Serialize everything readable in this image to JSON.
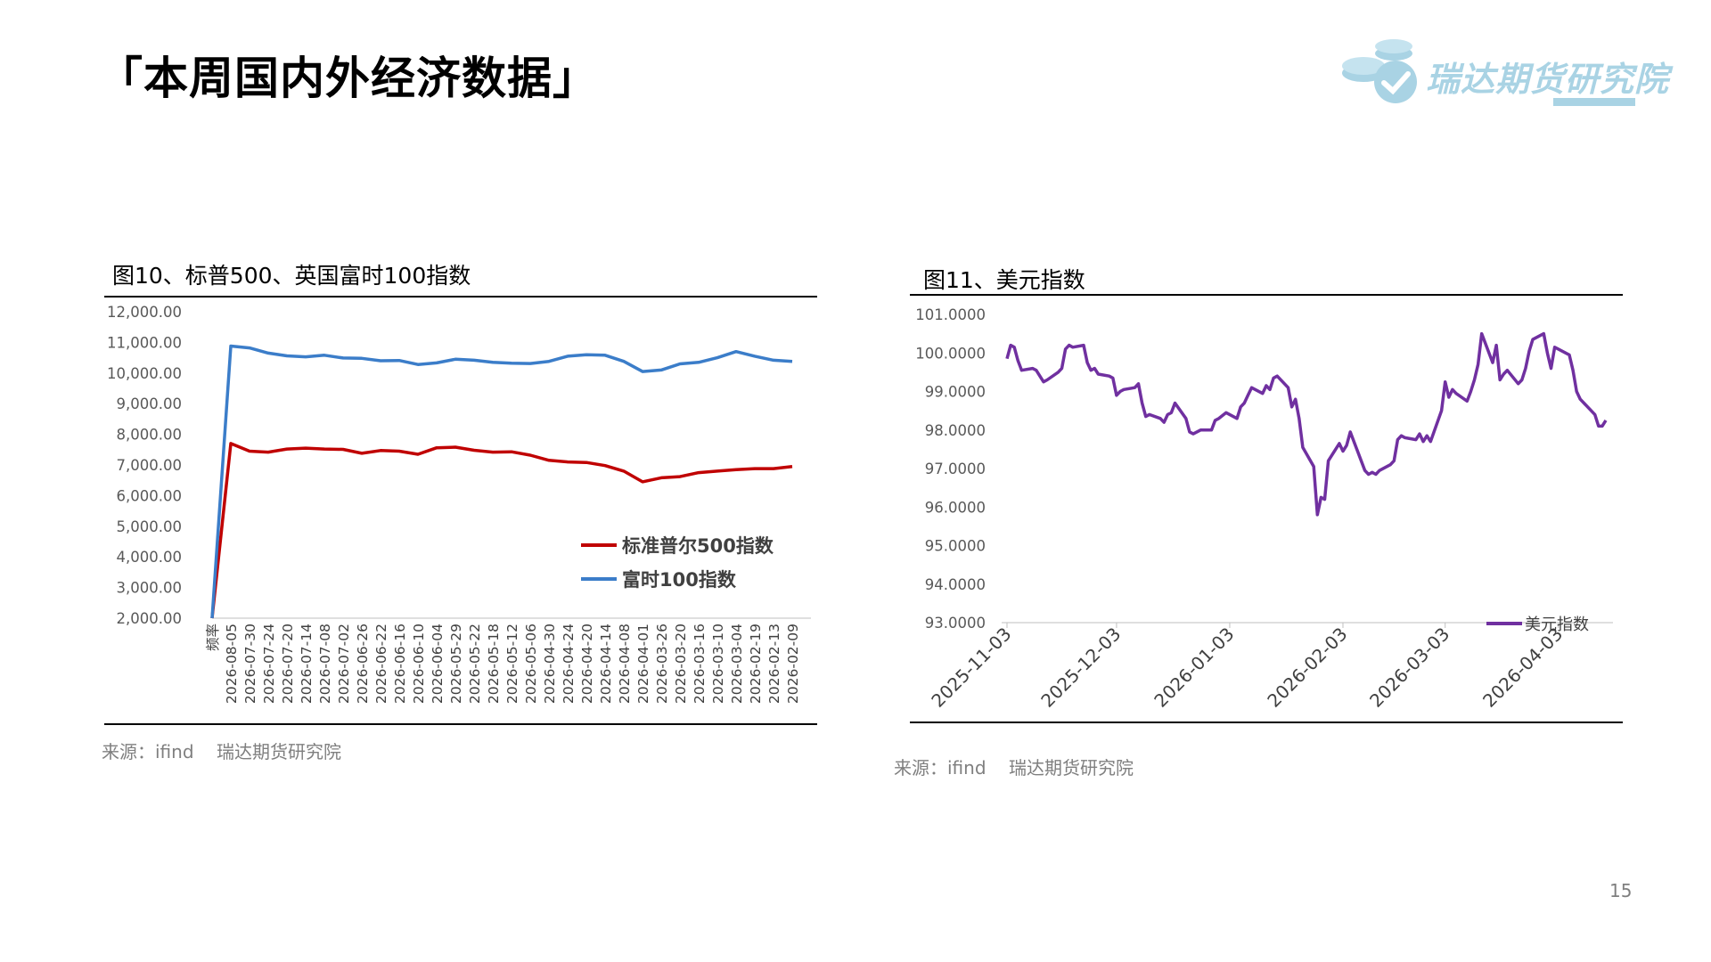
{
  "page": {
    "title": "「本周国内外经济数据」",
    "logo_text": "瑞达期货研究院",
    "page_number": "15"
  },
  "colors": {
    "red": "#c00000",
    "blue": "#3b7dc9",
    "purple": "#7030a0",
    "logo": "#a9d3e4"
  },
  "chart_data": [
    {
      "type": "line",
      "title": "图10、标普500、英国富时100指数",
      "source": "来源：ifind    瑞达期货研究院",
      "ylim": [
        2000,
        12000
      ],
      "yticks": [
        "12,000.00",
        "11,000.00",
        "10,000.00",
        "9,000.00",
        "8,000.00",
        "7,000.00",
        "6,000.00",
        "5,000.00",
        "4,000.00",
        "3,000.00",
        "2,000.00"
      ],
      "x_first_label": "频率",
      "x": [
        "2026-08-05",
        "2026-07-30",
        "2026-07-24",
        "2026-07-20",
        "2026-07-14",
        "2026-07-08",
        "2026-07-02",
        "2026-06-26",
        "2026-06-22",
        "2026-06-16",
        "2026-06-10",
        "2026-06-04",
        "2026-05-29",
        "2026-05-22",
        "2026-05-18",
        "2026-05-12",
        "2026-05-06",
        "2026-04-30",
        "2026-04-24",
        "2026-04-20",
        "2026-04-14",
        "2026-04-08",
        "2026-04-01",
        "2026-03-26",
        "2026-03-20",
        "2026-03-16",
        "2026-03-10",
        "2026-03-04",
        "2026-02-19",
        "2026-02-13",
        "2026-02-09"
      ],
      "series": [
        {
          "name": "标准普尔500指数",
          "color": "#c00000",
          "values": [
            7700,
            7450,
            7420,
            7520,
            7550,
            7520,
            7510,
            7380,
            7470,
            7450,
            7350,
            7560,
            7580,
            7480,
            7420,
            7430,
            7320,
            7150,
            7100,
            7080,
            6980,
            6800,
            6450,
            6580,
            6620,
            6750,
            6800,
            6850,
            6880,
            6880,
            6950
          ]
        },
        {
          "name": "富时100指数",
          "color": "#3b7dc9",
          "values": [
            10880,
            10820,
            10650,
            10560,
            10530,
            10580,
            10490,
            10480,
            10400,
            10410,
            10280,
            10330,
            10450,
            10420,
            10350,
            10320,
            10310,
            10380,
            10550,
            10600,
            10580,
            10380,
            10050,
            10100,
            10300,
            10350,
            10500,
            10700,
            10550,
            10420,
            10380
          ]
        }
      ],
      "legend": "bottom-right"
    },
    {
      "type": "line",
      "title": "图11、美元指数",
      "source": "来源：ifind    瑞达期货研究院",
      "ylim": [
        93,
        101
      ],
      "yticks": [
        "101.0000",
        "100.0000",
        "99.0000",
        "98.0000",
        "97.0000",
        "96.0000",
        "95.0000",
        "94.0000",
        "93.0000"
      ],
      "x_range": [
        "2025-11-03",
        "2026-04-16"
      ],
      "xticks": [
        "2025-11-03",
        "2025-12-03",
        "2026-01-03",
        "2026-02-03",
        "2026-03-03",
        "2026-04-03"
      ],
      "series": [
        {
          "name": "美元指数",
          "color": "#7030a0",
          "points": [
            [
              "2025-11-03",
              99.85
            ],
            [
              "2025-11-04",
              100.2
            ],
            [
              "2025-11-05",
              100.15
            ],
            [
              "2025-11-06",
              99.8
            ],
            [
              "2025-11-07",
              99.55
            ],
            [
              "2025-11-10",
              99.6
            ],
            [
              "2025-11-11",
              99.55
            ],
            [
              "2025-11-12",
              99.4
            ],
            [
              "2025-11-13",
              99.25
            ],
            [
              "2025-11-14",
              99.3
            ],
            [
              "2025-11-17",
              99.5
            ],
            [
              "2025-11-18",
              99.6
            ],
            [
              "2025-11-19",
              100.1
            ],
            [
              "2025-11-20",
              100.2
            ],
            [
              "2025-11-21",
              100.15
            ],
            [
              "2025-11-24",
              100.2
            ],
            [
              "2025-11-25",
              99.75
            ],
            [
              "2025-11-26",
              99.55
            ],
            [
              "2025-11-27",
              99.6
            ],
            [
              "2025-11-28",
              99.45
            ],
            [
              "2025-12-01",
              99.4
            ],
            [
              "2025-12-02",
              99.35
            ],
            [
              "2025-12-03",
              98.9
            ],
            [
              "2025-12-04",
              99.0
            ],
            [
              "2025-12-05",
              99.05
            ],
            [
              "2025-12-08",
              99.1
            ],
            [
              "2025-12-09",
              99.2
            ],
            [
              "2025-12-10",
              98.7
            ],
            [
              "2025-12-11",
              98.35
            ],
            [
              "2025-12-12",
              98.4
            ],
            [
              "2025-12-15",
              98.3
            ],
            [
              "2025-12-16",
              98.2
            ],
            [
              "2025-12-17",
              98.4
            ],
            [
              "2025-12-18",
              98.45
            ],
            [
              "2025-12-19",
              98.7
            ],
            [
              "2025-12-22",
              98.3
            ],
            [
              "2025-12-23",
              97.95
            ],
            [
              "2025-12-24",
              97.9
            ],
            [
              "2025-12-26",
              98.0
            ],
            [
              "2025-12-29",
              98.0
            ],
            [
              "2025-12-30",
              98.25
            ],
            [
              "2025-12-31",
              98.3
            ],
            [
              "2026-01-02",
              98.45
            ],
            [
              "2026-01-05",
              98.3
            ],
            [
              "2026-01-06",
              98.6
            ],
            [
              "2026-01-07",
              98.7
            ],
            [
              "2026-01-08",
              98.9
            ],
            [
              "2026-01-09",
              99.1
            ],
            [
              "2026-01-12",
              98.95
            ],
            [
              "2026-01-13",
              99.15
            ],
            [
              "2026-01-14",
              99.05
            ],
            [
              "2026-01-15",
              99.35
            ],
            [
              "2026-01-16",
              99.4
            ],
            [
              "2026-01-19",
              99.1
            ],
            [
              "2026-01-20",
              98.6
            ],
            [
              "2026-01-21",
              98.8
            ],
            [
              "2026-01-22",
              98.3
            ],
            [
              "2026-01-23",
              97.55
            ],
            [
              "2026-01-26",
              97.05
            ],
            [
              "2026-01-27",
              95.8
            ],
            [
              "2026-01-28",
              96.25
            ],
            [
              "2026-01-29",
              96.2
            ],
            [
              "2026-01-30",
              97.2
            ],
            [
              "2026-02-02",
              97.65
            ],
            [
              "2026-02-03",
              97.45
            ],
            [
              "2026-02-04",
              97.6
            ],
            [
              "2026-02-05",
              97.95
            ],
            [
              "2026-02-06",
              97.7
            ],
            [
              "2026-02-09",
              96.95
            ],
            [
              "2026-02-10",
              96.85
            ],
            [
              "2026-02-11",
              96.9
            ],
            [
              "2026-02-12",
              96.85
            ],
            [
              "2026-02-13",
              96.95
            ],
            [
              "2026-02-16",
              97.1
            ],
            [
              "2026-02-17",
              97.2
            ],
            [
              "2026-02-18",
              97.75
            ],
            [
              "2026-02-19",
              97.85
            ],
            [
              "2026-02-20",
              97.8
            ],
            [
              "2026-02-23",
              97.75
            ],
            [
              "2026-02-24",
              97.9
            ],
            [
              "2026-02-25",
              97.7
            ],
            [
              "2026-02-26",
              97.85
            ],
            [
              "2026-02-27",
              97.7
            ],
            [
              "2026-03-02",
              98.5
            ],
            [
              "2026-03-03",
              99.25
            ],
            [
              "2026-03-04",
              98.85
            ],
            [
              "2026-03-05",
              99.05
            ],
            [
              "2026-03-06",
              98.95
            ],
            [
              "2026-03-09",
              98.75
            ],
            [
              "2026-03-10",
              99.0
            ],
            [
              "2026-03-11",
              99.3
            ],
            [
              "2026-03-12",
              99.7
            ],
            [
              "2026-03-13",
              100.5
            ],
            [
              "2026-03-16",
              99.75
            ],
            [
              "2026-03-17",
              100.2
            ],
            [
              "2026-03-18",
              99.3
            ],
            [
              "2026-03-19",
              99.45
            ],
            [
              "2026-03-20",
              99.55
            ],
            [
              "2026-03-23",
              99.2
            ],
            [
              "2026-03-24",
              99.3
            ],
            [
              "2026-03-25",
              99.6
            ],
            [
              "2026-03-26",
              100.05
            ],
            [
              "2026-03-27",
              100.35
            ],
            [
              "2026-03-30",
              100.5
            ],
            [
              "2026-03-31",
              100.0
            ],
            [
              "2026-04-01",
              99.6
            ],
            [
              "2026-04-02",
              100.15
            ],
            [
              "2026-04-03",
              100.1
            ],
            [
              "2026-04-06",
              99.95
            ],
            [
              "2026-04-07",
              99.55
            ],
            [
              "2026-04-08",
              99.0
            ],
            [
              "2026-04-09",
              98.8
            ],
            [
              "2026-04-10",
              98.7
            ],
            [
              "2026-04-13",
              98.4
            ],
            [
              "2026-04-14",
              98.1
            ],
            [
              "2026-04-15",
              98.1
            ],
            [
              "2026-04-16",
              98.25
            ]
          ]
        }
      ],
      "legend": "bottom-right"
    }
  ]
}
